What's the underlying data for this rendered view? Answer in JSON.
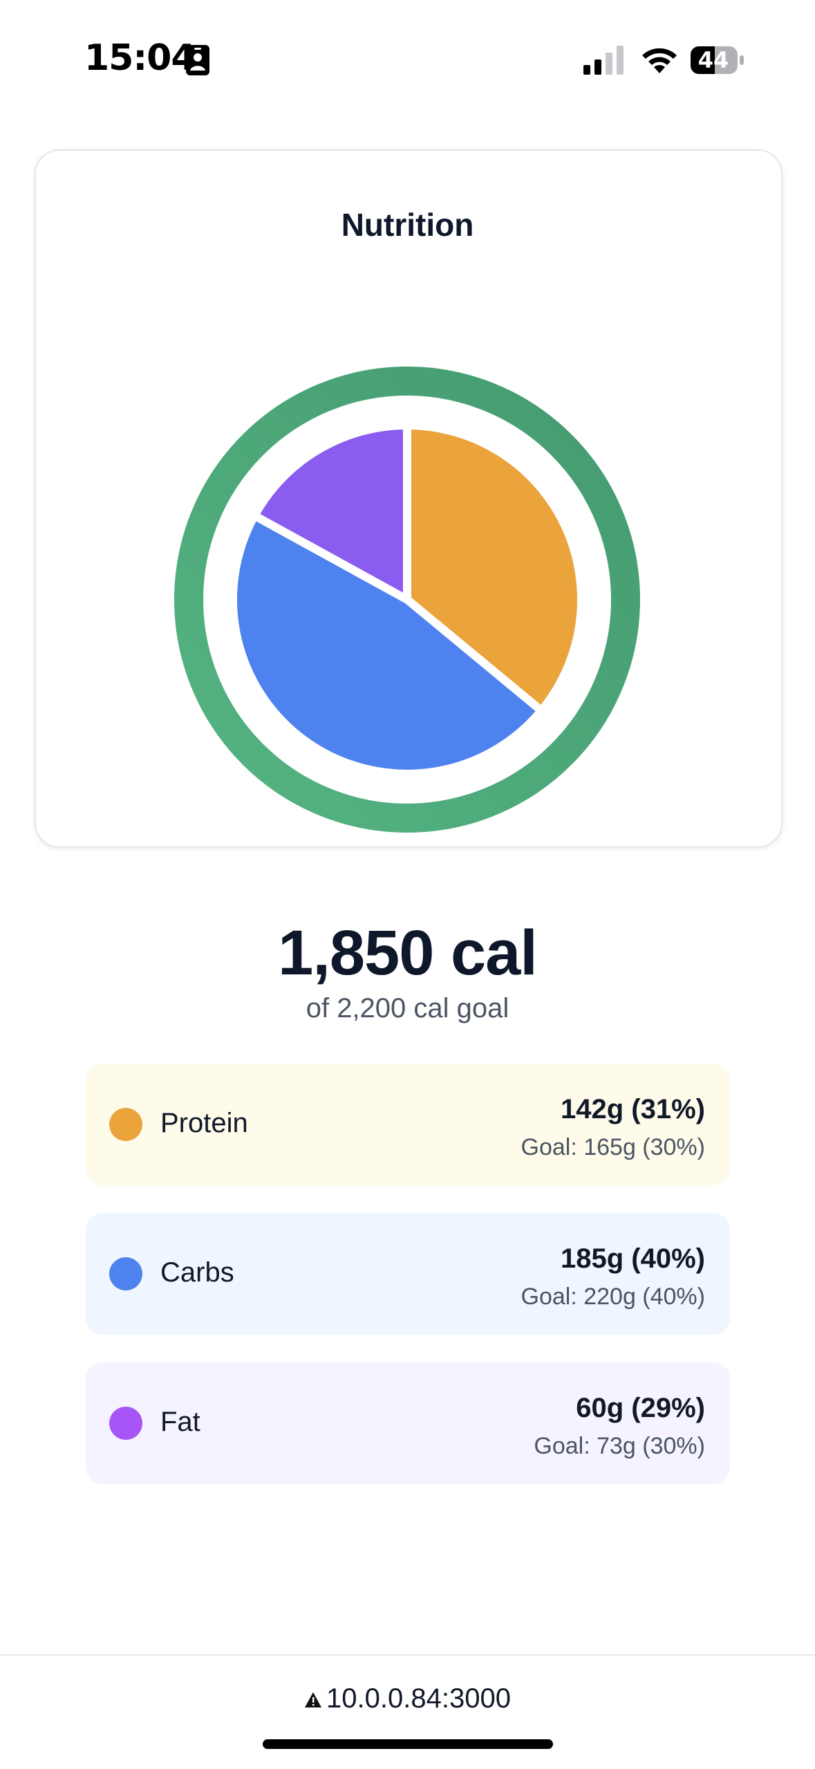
{
  "status_bar": {
    "time": "15:04",
    "battery": "44",
    "icons": [
      "contact-card-icon",
      "cellular-signal-icon",
      "wifi-icon",
      "battery-icon"
    ]
  },
  "card": {
    "title": "Nutrition"
  },
  "summary": {
    "calories": "1,850 cal",
    "goal": "of 2,200 cal goal"
  },
  "macros": [
    {
      "name": "Protein",
      "value": "142g (31%)",
      "goal": "Goal: 165g (30%)",
      "color": "#EBA33C",
      "bg": "#FEFBEB"
    },
    {
      "name": "Carbs",
      "value": "185g (40%)",
      "goal": "Goal: 220g (40%)",
      "color": "#4E82EE",
      "bg": "#EFF6FF"
    },
    {
      "name": "Fat",
      "value": "60g (29%)",
      "goal": "Goal: 73g (30%)",
      "color": "#A855F7",
      "bg": "#F5F3FF"
    }
  ],
  "chart_data": {
    "type": "pie",
    "categories": [
      "Protein",
      "Carbs",
      "Fat"
    ],
    "values": [
      36,
      47,
      17
    ],
    "colors": [
      "#EBA33C",
      "#4E82EE",
      "#8B5CF0"
    ],
    "ring_color": "#4EA877",
    "ring_fraction": 1.0,
    "title": "",
    "legend": "none"
  },
  "url_bar": {
    "url": "10.0.0.84:3000",
    "icon": "warning-triangle-icon"
  }
}
